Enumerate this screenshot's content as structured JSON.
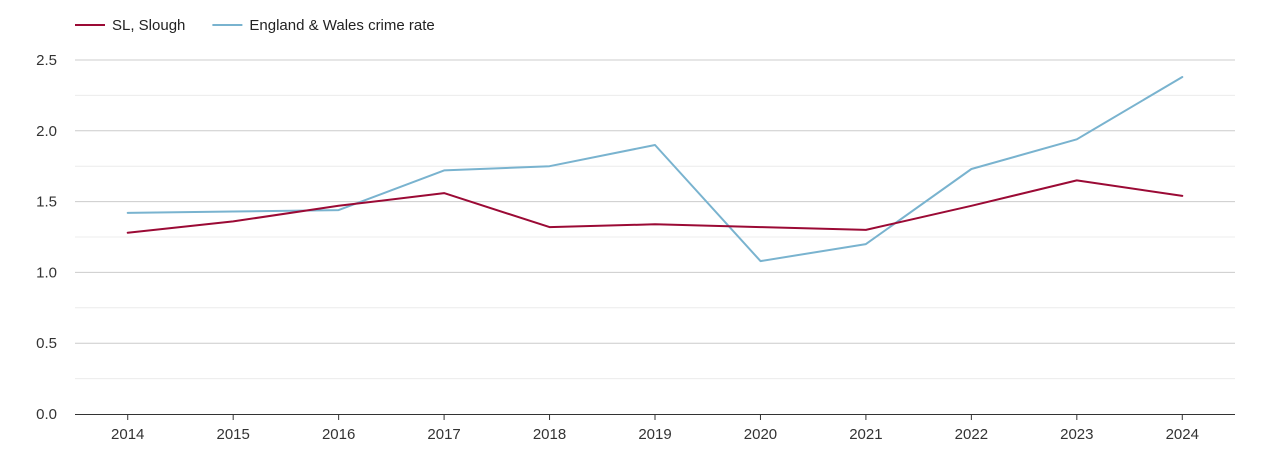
{
  "chart_data": {
    "type": "line",
    "title": "",
    "xlabel": "",
    "ylabel": "",
    "categories": [
      "2014",
      "2015",
      "2016",
      "2017",
      "2018",
      "2019",
      "2020",
      "2021",
      "2022",
      "2023",
      "2024"
    ],
    "ylim": [
      0,
      2.5
    ],
    "yticks": [
      "0.0",
      "0.5",
      "1.0",
      "1.5",
      "2.0",
      "2.5"
    ],
    "grid": true,
    "legend_position": "top-left",
    "series": [
      {
        "name": "SL, Slough",
        "color": "#9b0a35",
        "values": [
          1.28,
          1.36,
          1.47,
          1.56,
          1.32,
          1.34,
          1.32,
          1.3,
          1.47,
          1.65,
          1.54
        ]
      },
      {
        "name": "England & Wales crime rate",
        "color": "#79b3cf",
        "values": [
          1.42,
          1.43,
          1.44,
          1.72,
          1.75,
          1.9,
          1.08,
          1.2,
          1.73,
          1.94,
          2.38
        ]
      }
    ]
  }
}
